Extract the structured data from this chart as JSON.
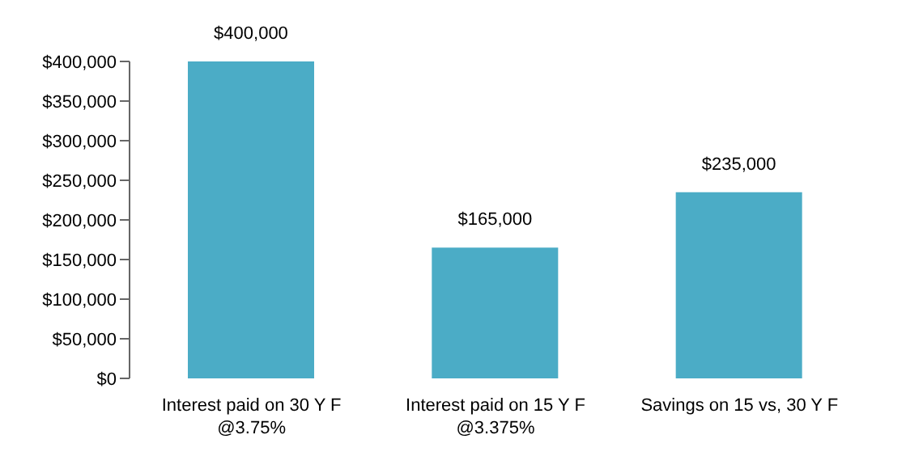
{
  "chart_data": {
    "type": "bar",
    "categories": [
      "Interest paid on 30 Y F @3.75%",
      "Interest paid on 15 Y F @3.375%",
      "Savings on 15 vs, 30 Y F"
    ],
    "values": [
      400000,
      165000,
      235000
    ],
    "color": "#4bacc6",
    "value_labels": [
      "$400,000",
      "$165,000",
      "$235,000"
    ],
    "ylim": [
      0,
      400000
    ],
    "yticks": [
      {
        "value": 0,
        "label": "$0"
      },
      {
        "value": 50000,
        "label": "$50,000"
      },
      {
        "value": 100000,
        "label": "$100,000"
      },
      {
        "value": 150000,
        "label": "$150,000"
      },
      {
        "value": 200000,
        "label": "$200,000"
      },
      {
        "value": 250000,
        "label": "$250,000"
      },
      {
        "value": 300000,
        "label": "$300,000"
      },
      {
        "value": 350000,
        "label": "$350,000"
      },
      {
        "value": 400000,
        "label": "$400,000"
      }
    ],
    "grid": false,
    "legend": false
  }
}
